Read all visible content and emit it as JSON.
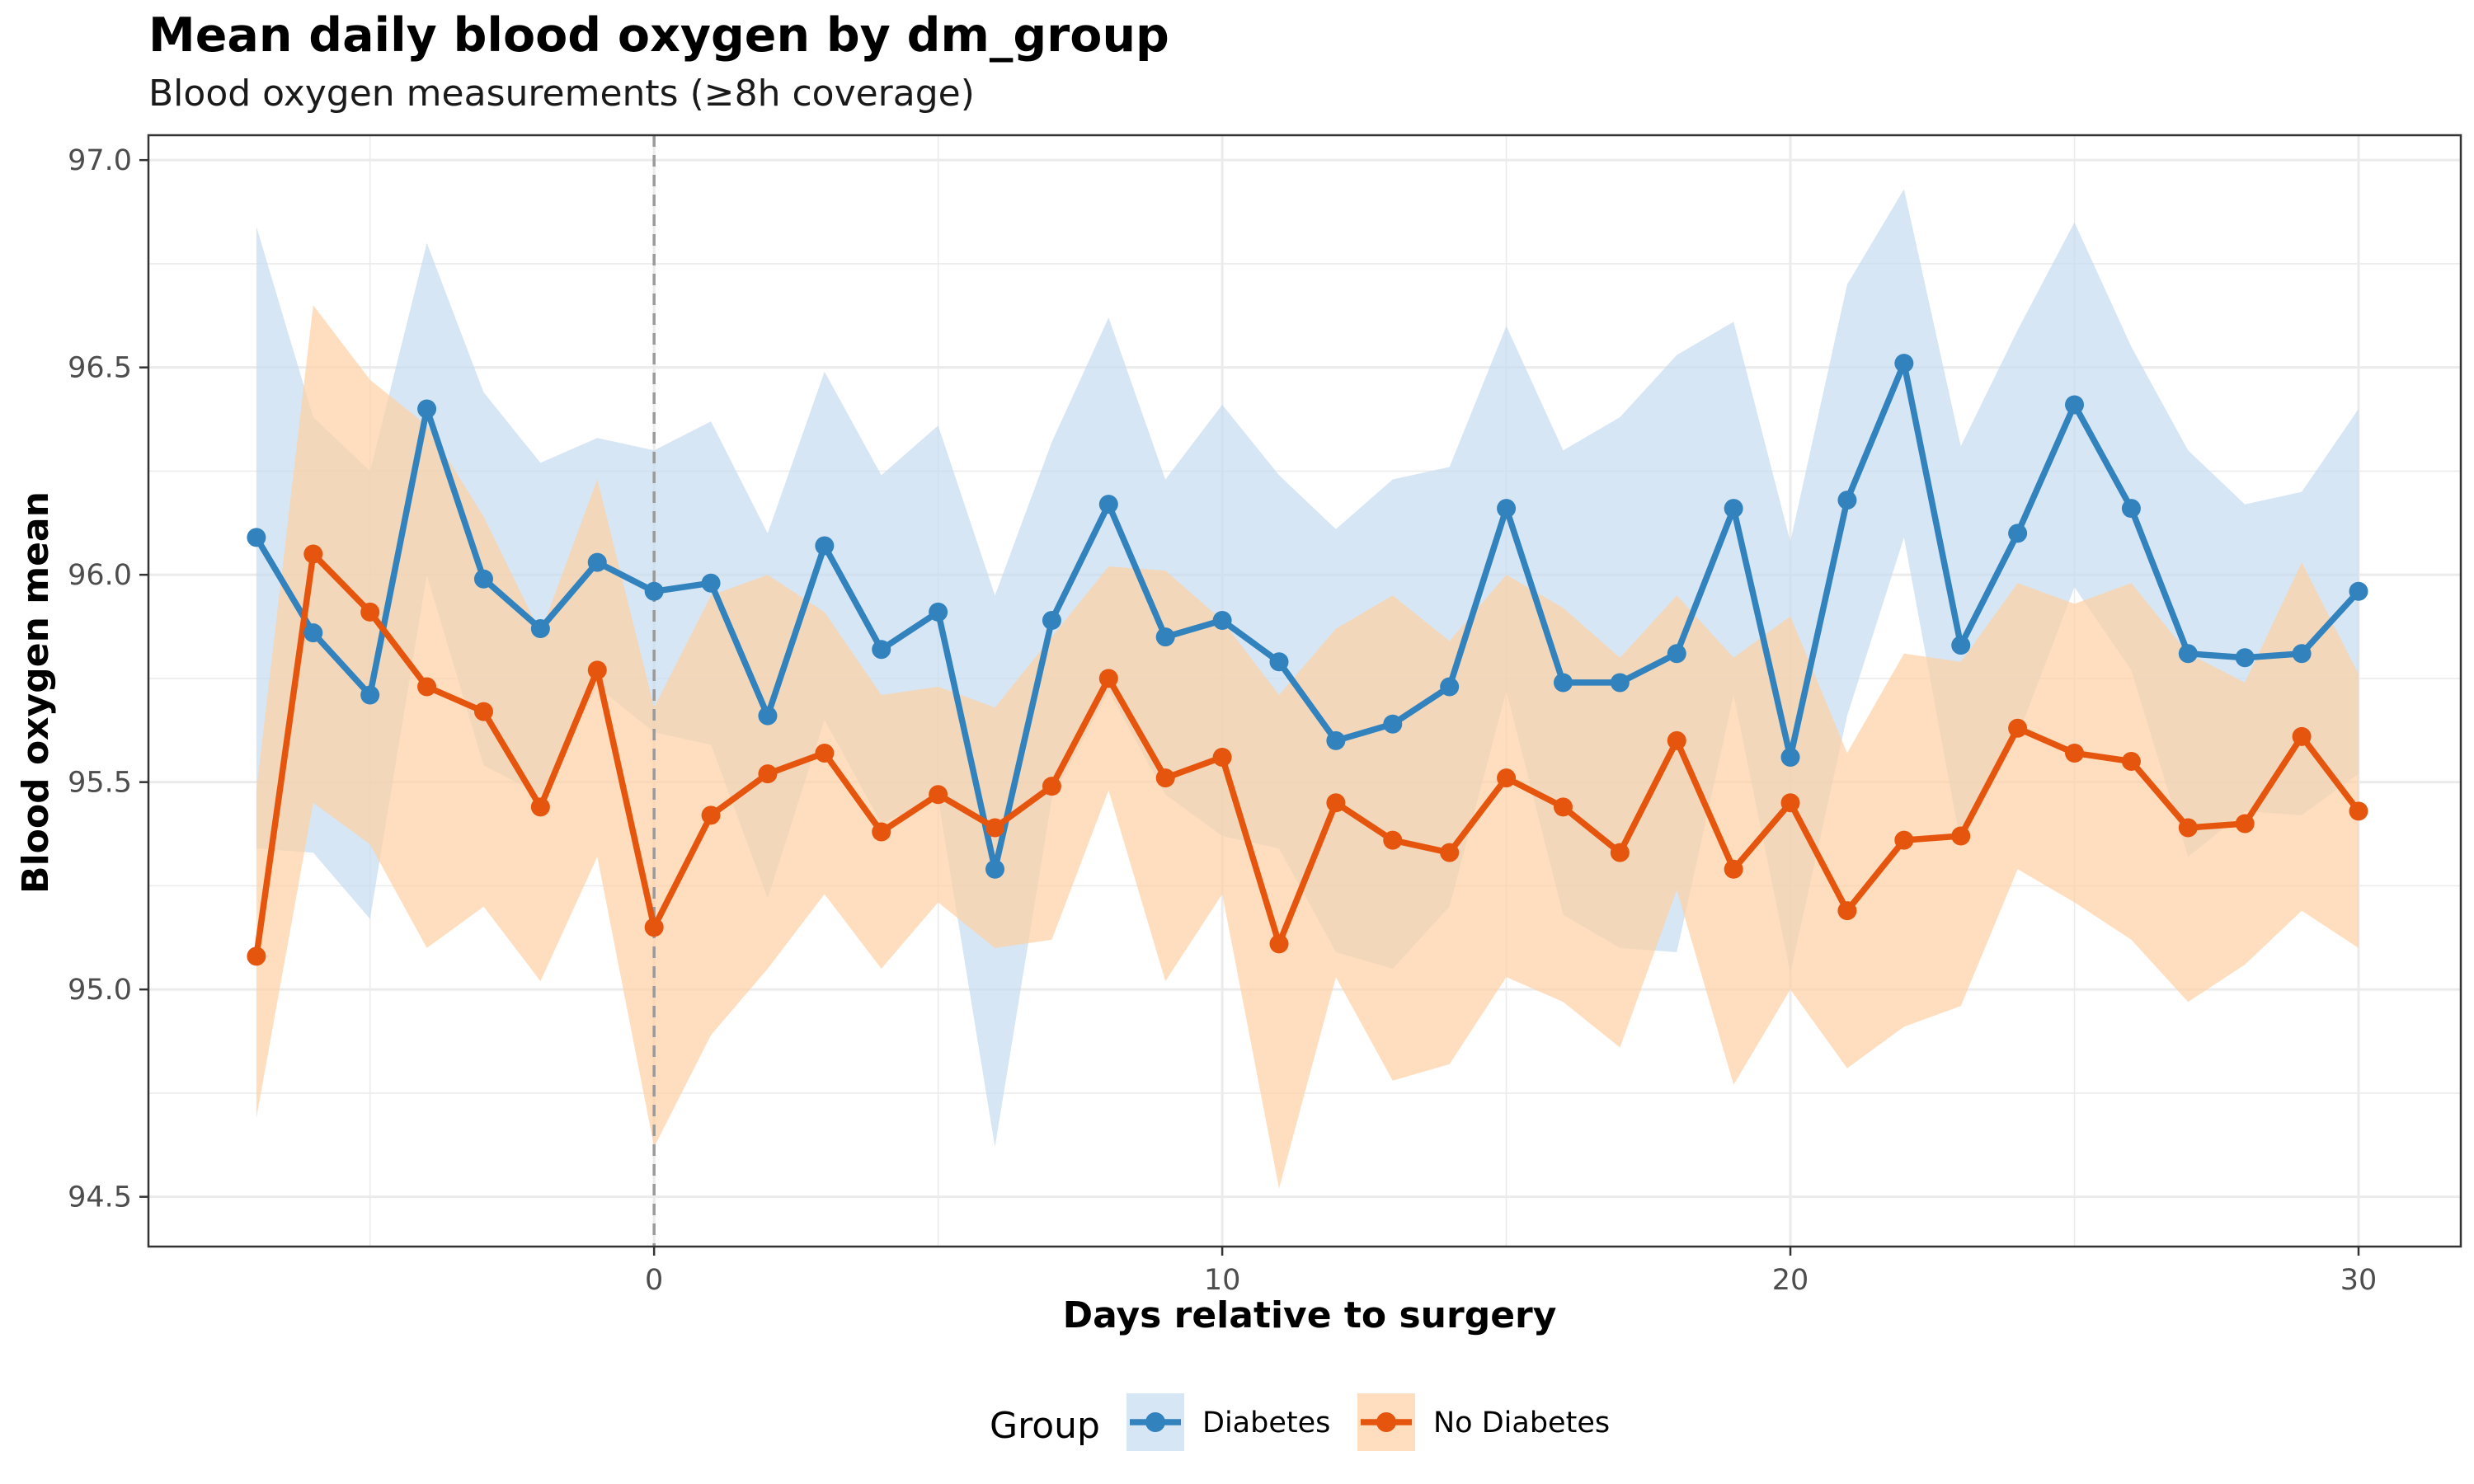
{
  "chart_data": {
    "type": "line",
    "title": "Mean daily blood oxygen by dm_group",
    "subtitle": "Blood oxygen measurements (≥8h coverage)",
    "xlabel": "Days relative to surgery",
    "ylabel": "Blood oxygen mean",
    "xlim": [
      -8.9,
      31.8
    ],
    "ylim": [
      94.38,
      97.06
    ],
    "xticks": [
      0,
      10,
      20,
      30
    ],
    "yticks": [
      94.5,
      95.0,
      95.5,
      96.0,
      96.5,
      97.0
    ],
    "ytick_labels": [
      "94.5",
      "95.0",
      "95.5",
      "96.0",
      "96.5",
      "97.0"
    ],
    "grid": true,
    "vline": {
      "x": 0,
      "style": "dashed"
    },
    "legend": {
      "title": "Group",
      "position": "bottom"
    },
    "x": [
      -7,
      -6,
      -5,
      -4,
      -3,
      -2,
      -1,
      0,
      1,
      2,
      3,
      4,
      5,
      6,
      7,
      8,
      9,
      10,
      11,
      12,
      13,
      14,
      15,
      16,
      17,
      18,
      19,
      20,
      21,
      22,
      23,
      24,
      25,
      26,
      27,
      28,
      29,
      30
    ],
    "series": [
      {
        "name": "Diabetes",
        "color": "#3182bd",
        "band_color": "#c6dbef",
        "values": [
          96.09,
          95.86,
          95.71,
          96.4,
          95.99,
          95.87,
          96.03,
          95.96,
          95.98,
          95.66,
          96.07,
          95.82,
          95.91,
          95.29,
          95.89,
          96.17,
          95.85,
          95.89,
          95.79,
          95.6,
          95.64,
          95.73,
          96.16,
          95.74,
          95.74,
          95.81,
          96.16,
          95.56,
          96.18,
          96.51,
          95.83,
          96.1,
          96.41,
          96.16,
          95.81,
          95.8,
          95.81,
          95.96
        ],
        "upper": [
          96.84,
          96.38,
          96.25,
          96.8,
          96.44,
          96.27,
          96.33,
          96.3,
          96.37,
          96.1,
          96.49,
          96.24,
          96.36,
          95.95,
          96.32,
          96.62,
          96.23,
          96.41,
          96.24,
          96.11,
          96.23,
          96.26,
          96.6,
          96.3,
          96.38,
          96.53,
          96.61,
          96.08,
          96.7,
          96.93,
          96.31,
          96.59,
          96.85,
          96.55,
          96.3,
          96.17,
          96.2,
          96.4
        ],
        "lower": [
          95.34,
          95.33,
          95.17,
          96.0,
          95.54,
          95.47,
          95.73,
          95.62,
          95.59,
          95.22,
          95.65,
          95.4,
          95.46,
          94.62,
          95.46,
          95.72,
          95.47,
          95.37,
          95.34,
          95.09,
          95.05,
          95.2,
          95.72,
          95.18,
          95.1,
          95.09,
          95.71,
          95.04,
          95.66,
          96.09,
          95.35,
          95.61,
          95.97,
          95.77,
          95.32,
          95.43,
          95.42,
          95.52
        ]
      },
      {
        "name": "No Diabetes",
        "color": "#e6550d",
        "band_color": "#fdd0a2",
        "values": [
          95.08,
          96.05,
          95.91,
          95.73,
          95.67,
          95.44,
          95.77,
          95.15,
          95.42,
          95.52,
          95.57,
          95.38,
          95.47,
          95.39,
          95.49,
          95.75,
          95.51,
          95.56,
          95.11,
          95.45,
          95.36,
          95.33,
          95.51,
          95.44,
          95.33,
          95.6,
          95.29,
          95.45,
          95.19,
          95.36,
          95.37,
          95.63,
          95.57,
          95.55,
          95.39,
          95.4,
          95.61,
          95.43
        ],
        "upper": [
          95.48,
          96.65,
          96.47,
          96.36,
          96.14,
          95.86,
          96.23,
          95.68,
          95.95,
          96.0,
          95.91,
          95.71,
          95.73,
          95.68,
          95.85,
          96.02,
          96.01,
          95.89,
          95.71,
          95.87,
          95.95,
          95.84,
          96.0,
          95.92,
          95.8,
          95.95,
          95.8,
          95.9,
          95.57,
          95.81,
          95.79,
          95.98,
          95.93,
          95.98,
          95.81,
          95.74,
          96.03,
          95.76
        ],
        "lower": [
          94.69,
          95.45,
          95.35,
          95.1,
          95.2,
          95.02,
          95.32,
          94.62,
          94.89,
          95.05,
          95.23,
          95.05,
          95.21,
          95.1,
          95.12,
          95.48,
          95.02,
          95.23,
          94.52,
          95.03,
          94.78,
          94.82,
          95.03,
          94.97,
          94.86,
          95.24,
          94.77,
          95.0,
          94.81,
          94.91,
          94.96,
          95.29,
          95.21,
          95.12,
          94.97,
          95.06,
          95.19,
          95.1
        ]
      }
    ]
  }
}
